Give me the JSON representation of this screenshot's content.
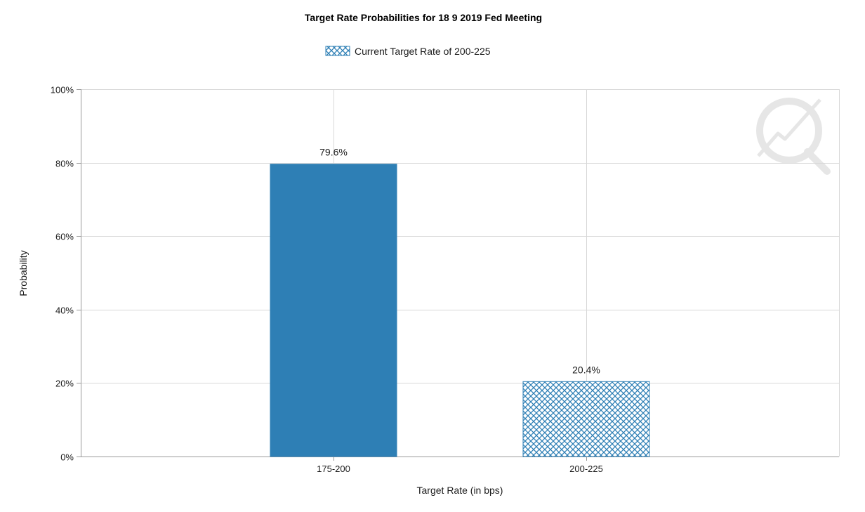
{
  "chart_data": {
    "type": "bar",
    "title": "Target Rate Probabilities for 18 9 2019 Fed Meeting",
    "xlabel": "Target Rate (in bps)",
    "ylabel": "Probability",
    "categories": [
      "175-200",
      "200-225"
    ],
    "values": [
      79.6,
      20.4
    ],
    "value_labels": [
      "79.6%",
      "20.4%"
    ],
    "ylim": [
      0,
      100
    ],
    "yticks": [
      0,
      20,
      40,
      60,
      80,
      100
    ],
    "ytick_labels": [
      "0%",
      "20%",
      "40%",
      "60%",
      "80%",
      "100%"
    ],
    "grid": true,
    "legend": {
      "position": "top-center",
      "entries": [
        "Current Target Rate of 200-225"
      ]
    },
    "highlighted_category": "200-225",
    "colors": {
      "bar": "#2e7fb5",
      "hatch_fill": "#ffffff",
      "hatch_line": "#2e7fb5",
      "grid": "#d8d8d8",
      "axis": "#9a9a9a",
      "text": "#1a1a1a"
    }
  }
}
